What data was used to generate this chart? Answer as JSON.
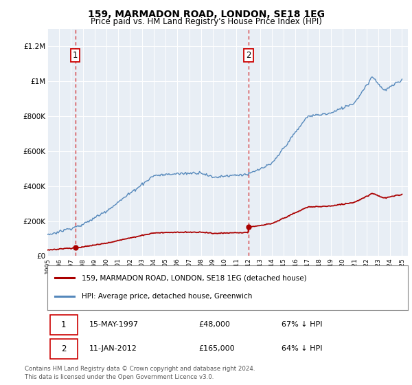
{
  "title": "159, MARMADON ROAD, LONDON, SE18 1EG",
  "subtitle": "Price paid vs. HM Land Registry's House Price Index (HPI)",
  "ylabel_ticks": [
    "£0",
    "£200K",
    "£400K",
    "£600K",
    "£800K",
    "£1M",
    "£1.2M"
  ],
  "ylim": [
    0,
    1300000
  ],
  "xlim_start": 1995,
  "xlim_end": 2025.5,
  "sale1_year": 1997.37,
  "sale1_price": 48000,
  "sale2_year": 2012.03,
  "sale2_price": 165000,
  "sale1_label": "1",
  "sale2_label": "2",
  "line_color_property": "#aa0000",
  "line_color_hpi": "#5588bb",
  "chart_bg_color": "#e8eef5",
  "annotation_box_color": "#cc0000",
  "legend_label_1": "159, MARMADON ROAD, LONDON, SE18 1EG (detached house)",
  "legend_label_2": "HPI: Average price, detached house, Greenwich",
  "table_row1": [
    "1",
    "15-MAY-1997",
    "£48,000",
    "67% ↓ HPI"
  ],
  "table_row2": [
    "2",
    "11-JAN-2012",
    "£165,000",
    "64% ↓ HPI"
  ],
  "footnote": "Contains HM Land Registry data © Crown copyright and database right 2024.\nThis data is licensed under the Open Government Licence v3.0."
}
